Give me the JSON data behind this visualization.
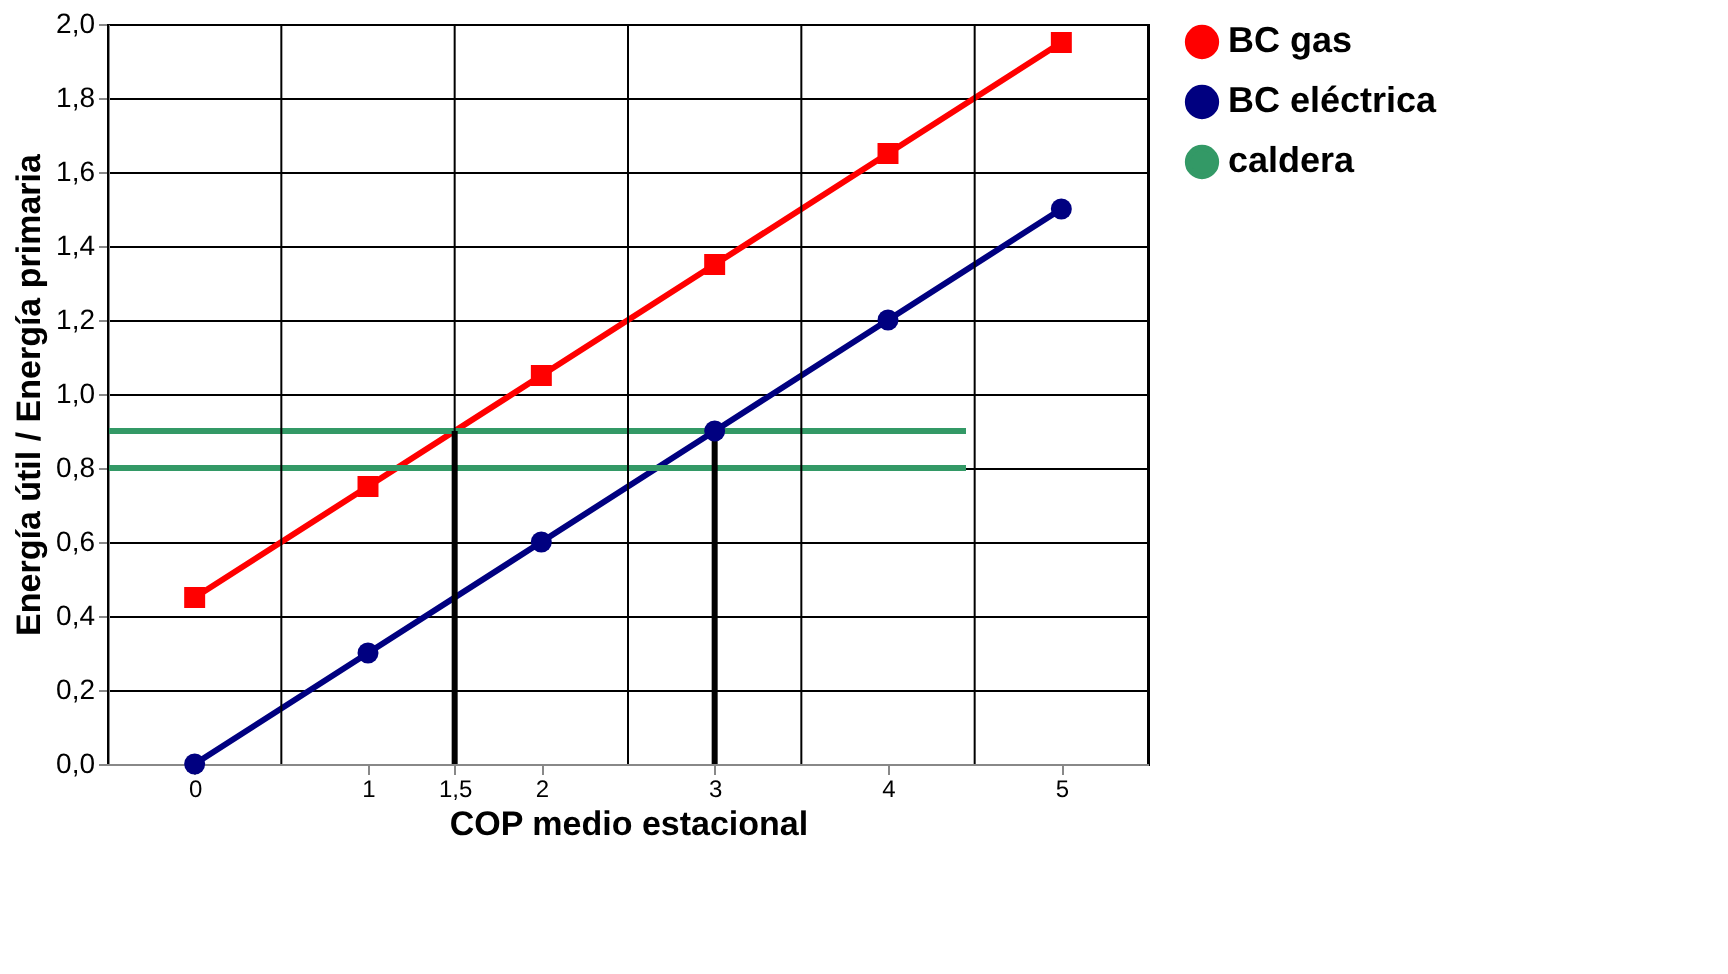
{
  "chart_data": {
    "type": "line",
    "xlabel": "COP medio estacional",
    "ylabel": "Energía útil / Energía primaria",
    "xlim": [
      -0.5,
      5.5
    ],
    "xticks": [
      0,
      1,
      {
        "value": 1.5,
        "label": "1,5"
      },
      2,
      3,
      4,
      5
    ],
    "ylim": [
      0,
      2
    ],
    "yticks": [
      {
        "value": 0,
        "label": "0,0"
      },
      {
        "value": 0.2,
        "label": "0,2"
      },
      {
        "value": 0.4,
        "label": "0,4"
      },
      {
        "value": 0.6,
        "label": "0,6"
      },
      {
        "value": 0.8,
        "label": "0,8"
      },
      {
        "value": 1,
        "label": "1,0"
      },
      {
        "value": 1.2,
        "label": "1,2"
      },
      {
        "value": 1.4,
        "label": "1,4"
      },
      {
        "value": 1.6,
        "label": "1,6"
      },
      {
        "value": 1.8,
        "label": "1,8"
      },
      {
        "value": 2,
        "label": "2,0"
      }
    ],
    "grid": "y",
    "legend": "right",
    "series": [
      {
        "name": "BC gas",
        "color": "#ff0000",
        "marker": "square",
        "x": [
          0,
          1,
          2,
          3,
          4,
          5
        ],
        "values": [
          0.45,
          0.75,
          1.05,
          1.35,
          1.65,
          1.95
        ]
      },
      {
        "name": "BC eléctrica",
        "color": "#000080",
        "marker": "circle",
        "x": [
          0,
          1,
          2,
          3,
          4,
          5
        ],
        "values": [
          0,
          0.3,
          0.6,
          0.9,
          1.2,
          1.5
        ]
      },
      {
        "name": "caldera",
        "color": "#339966",
        "marker": "none",
        "x": [
          -0.5,
          4.45
        ],
        "values": [
          0.9,
          0.9
        ]
      },
      {
        "color": "#339966",
        "marker": "none",
        "x": [
          -0.5,
          4.45
        ],
        "values": [
          0.8,
          0.8
        ]
      },
      {
        "color": "#000000",
        "marker": "none",
        "x": [
          1.5,
          1.5
        ],
        "values": [
          0.9,
          0
        ]
      },
      {
        "color": "#000000",
        "marker": "none",
        "x": [
          3,
          3
        ],
        "values": [
          0.9,
          0
        ]
      }
    ],
    "ref_lines": [
      {
        "axis": "x",
        "value": -0.5,
        "color": "#000000"
      },
      {
        "axis": "x",
        "value": 0.5,
        "color": "#000000"
      },
      {
        "axis": "x",
        "value": 1.5,
        "color": "#000000"
      },
      {
        "axis": "x",
        "value": 2.5,
        "color": "#000000"
      },
      {
        "axis": "x",
        "value": 3.5,
        "color": "#000000"
      },
      {
        "axis": "x",
        "value": 4.5,
        "color": "#000000"
      },
      {
        "axis": "x",
        "value": 5.5,
        "color": "#000000"
      }
    ]
  }
}
